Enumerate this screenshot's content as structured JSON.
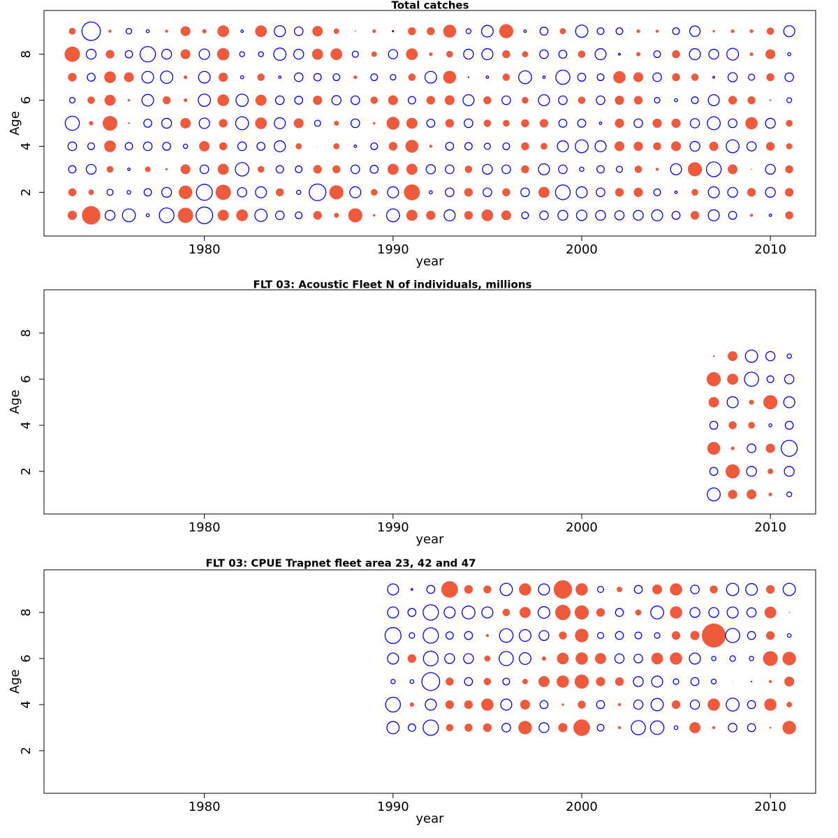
{
  "chart_data": [
    {
      "type": "bubble",
      "title": "Total catches",
      "xlabel": "year",
      "ylabel": "Age",
      "x": [
        1973,
        1974,
        1975,
        1976,
        1977,
        1978,
        1979,
        1980,
        1981,
        1982,
        1983,
        1984,
        1985,
        1986,
        1987,
        1988,
        1989,
        1990,
        1991,
        1992,
        1993,
        1994,
        1995,
        1996,
        1997,
        1998,
        1999,
        2000,
        2001,
        2002,
        2003,
        2004,
        2005,
        2006,
        2007,
        2008,
        2009,
        2010,
        2011
      ],
      "y": [
        1,
        2,
        3,
        4,
        5,
        6,
        7,
        8,
        9
      ],
      "values": [
        [
          1.5,
          3.0,
          -1.6,
          -2.1,
          -0.5,
          -2.4,
          2.5,
          -2.7,
          1.8,
          1.9,
          -2.0,
          -1.4,
          -1.1,
          1.4,
          0.8,
          2.3,
          0.4,
          -2.1,
          1.8,
          1.5,
          -1.8,
          1.4,
          1.9,
          1.6,
          -1.1,
          -1.4,
          -1.6,
          -1.7,
          -1.6,
          -1.5,
          -1.6,
          -1.8,
          -1.3,
          1.4,
          -1.8,
          -1.3,
          0.5,
          -0.4,
          1.3
        ],
        [
          1.3,
          0.9,
          -1.0,
          -0.6,
          -1.2,
          -1.6,
          2.2,
          -2.6,
          2.5,
          -1.5,
          -1.8,
          1.3,
          -0.7,
          -2.7,
          2.3,
          -1.8,
          1.1,
          -1.8,
          2.6,
          -0.5,
          -1.4,
          1.4,
          -1.4,
          1.3,
          -1.4,
          1.8,
          -2.4,
          -1.8,
          -1.4,
          1.4,
          1.5,
          -1.1,
          -0.4,
          1.1,
          -1.8,
          -1.6,
          1.4,
          -1.6,
          1.4
        ],
        [
          -1.2,
          -1.6,
          1.1,
          -0.4,
          0.9,
          0.4,
          1.6,
          -1.4,
          1.8,
          -2.2,
          1.1,
          -1.2,
          -1.1,
          1.4,
          1.3,
          -1.4,
          -1.3,
          1.8,
          1.8,
          -1.5,
          -1.4,
          1.2,
          -1.6,
          -1.4,
          1.3,
          -1.8,
          -1.4,
          -0.7,
          -1.2,
          -1.0,
          1.2,
          0.5,
          -1.8,
          2.3,
          -2.4,
          1.6,
          0.2,
          -1.6,
          1.3
        ],
        [
          -1.4,
          -1.1,
          1.9,
          -1.2,
          -1.4,
          -1.3,
          -0.7,
          1.7,
          1.3,
          -1.4,
          -1.3,
          -1.8,
          1.0,
          0.1,
          1.0,
          -0.4,
          -1.1,
          1.4,
          2.1,
          0.5,
          -1.3,
          -1.2,
          -1.0,
          -1.1,
          1.3,
          1.1,
          -1.8,
          -2.1,
          -1.8,
          1.6,
          1.5,
          1.3,
          1.6,
          -1.6,
          1.5,
          -2.1,
          -1.5,
          1.4,
          1.0
        ],
        [
          -2.3,
          0.7,
          2.4,
          0.3,
          -1.3,
          -1.6,
          1.7,
          -1.7,
          1.4,
          -2.1,
          1.9,
          -1.8,
          1.6,
          -1.0,
          0.8,
          -1.4,
          0.4,
          2.1,
          1.8,
          -1.3,
          1.4,
          -1.4,
          1.2,
          1.1,
          1.3,
          1.4,
          -1.3,
          -1.3,
          -0.4,
          1.5,
          -1.4,
          1.5,
          1.5,
          -1.5,
          -2.1,
          -1.4,
          2.0,
          -1.6,
          1.1
        ],
        [
          -0.9,
          1.2,
          1.8,
          0.4,
          -1.9,
          1.3,
          0.6,
          -2.0,
          1.9,
          -2.0,
          1.8,
          -1.4,
          -1.3,
          1.5,
          -1.5,
          -1.4,
          1.2,
          1.6,
          -1.2,
          1.4,
          1.6,
          -1.8,
          1.3,
          -1.4,
          1.1,
          -1.8,
          -1.4,
          1.2,
          -1.4,
          1.5,
          1.4,
          -0.9,
          -0.5,
          -1.1,
          -1.8,
          1.4,
          1.3,
          0.3,
          -0.8
        ],
        [
          1.4,
          -1.3,
          1.9,
          1.6,
          -1.9,
          -2.0,
          0.6,
          -1.9,
          1.5,
          -0.5,
          1.2,
          -0.4,
          -1.4,
          -1.2,
          -1.1,
          0.6,
          -1.1,
          -0.9,
          1.2,
          -1.9,
          2.1,
          -0.1,
          -0.4,
          1.2,
          -2.1,
          -0.4,
          -2.3,
          -1.3,
          -1.1,
          2.0,
          1.6,
          -1.4,
          1.3,
          1.2,
          -0.3,
          -1.5,
          -1.0,
          1.3,
          -1.4
        ],
        [
          2.5,
          -1.6,
          1.4,
          -1.2,
          -2.5,
          -1.6,
          1.6,
          -1.7,
          2.0,
          -0.8,
          -0.8,
          -2.0,
          -1.6,
          1.8,
          1.9,
          -1.0,
          0.9,
          -1.5,
          1.9,
          0.6,
          1.1,
          -1.6,
          -1.8,
          1.3,
          1.0,
          -1.4,
          -1.3,
          1.2,
          -1.8,
          -0.3,
          0.7,
          -1.1,
          1.3,
          -1.8,
          -1.6,
          -1.9,
          0.6,
          1.6,
          -0.5
        ],
        [
          1.1,
          -3.0,
          0.5,
          -0.9,
          -0.5,
          0.5,
          1.6,
          0.7,
          1.9,
          -0.4,
          1.9,
          -1.8,
          -1.4,
          1.7,
          0.9,
          0.2,
          0.6,
          -0.2,
          1.3,
          1.3,
          2.1,
          -0.8,
          -1.9,
          2.3,
          -0.4,
          -1.3,
          1.0,
          -2.0,
          -1.1,
          -1.1,
          0.6,
          0.5,
          -1.1,
          -1.7,
          0.4,
          0.6,
          0.6,
          1.2,
          -1.8
        ]
      ],
      "xlim": [
        1971.5,
        2012.4
      ],
      "ylim": [
        0.1,
        9.9
      ],
      "xticks": [
        1980,
        1990,
        2000,
        2010
      ],
      "yticks": [
        2,
        4,
        6,
        8
      ],
      "positive_color": "#ef5a3c",
      "negative_color": "#0000ff"
    },
    {
      "type": "bubble",
      "title": "FLT 03: Acoustic Fleet  N of individuals, millions",
      "xlabel": "year",
      "ylabel": "Age",
      "x": [
        2007,
        2008,
        2009,
        2010,
        2011
      ],
      "y": [
        1,
        2,
        3,
        4,
        5,
        6,
        7
      ],
      "values": [
        [
          -2.1,
          1.5,
          1.6,
          0.6,
          -0.8
        ],
        [
          -1.3,
          2.3,
          -1.6,
          0.9,
          -1.6
        ],
        [
          2.1,
          0.6,
          -1.4,
          1.5,
          -2.6
        ],
        [
          -1.3,
          1.3,
          1.1,
          -0.5,
          -1.3
        ],
        [
          1.7,
          -1.8,
          0.8,
          2.3,
          -1.8
        ],
        [
          2.3,
          1.8,
          -2.3,
          -1.1,
          -1.5
        ],
        [
          0.3,
          1.6,
          -2.0,
          -1.5,
          -0.7
        ]
      ],
      "xlim": [
        1971.5,
        2012.4
      ],
      "ylim": [
        0.15,
        9.88
      ],
      "xticks": [
        1980,
        1990,
        2000,
        2010
      ],
      "yticks": [
        2,
        4,
        6,
        8
      ],
      "positive_color": "#ef5a3c",
      "negative_color": "#0000ff"
    },
    {
      "type": "bubble",
      "title": "FLT 03: CPUE Trapnet fleet area 23, 42 and 47",
      "xlabel": "year",
      "ylabel": "Age",
      "x": [
        1990,
        1991,
        1992,
        1993,
        1994,
        1995,
        1996,
        1997,
        1998,
        1999,
        2000,
        2001,
        2002,
        2003,
        2004,
        2005,
        2006,
        2007,
        2008,
        2009,
        2010,
        2011
      ],
      "y": [
        3,
        4,
        5,
        6,
        7,
        8,
        9
      ],
      "values": [
        [
          -2.0,
          -1.2,
          -2.5,
          1.2,
          1.3,
          1.4,
          -1.4,
          2.2,
          -1.6,
          1.5,
          2.7,
          -1.1,
          0.5,
          -2.3,
          -2.2,
          -0.6,
          1.8,
          0.5,
          -1.4,
          -1.3,
          0.3,
          2.2
        ],
        [
          -2.4,
          0.7,
          -1.8,
          1.4,
          1.4,
          2.0,
          -1.8,
          1.6,
          -1.3,
          0.4,
          1.3,
          -1.3,
          0.5,
          -1.5,
          -2.0,
          1.4,
          -1.5,
          2.0,
          -2.1,
          -1.3,
          2.0,
          0.9
        ],
        [
          -0.7,
          -0.6,
          -2.9,
          1.3,
          -1.3,
          1.2,
          -1.1,
          0.9,
          1.8,
          2.0,
          2.3,
          1.5,
          1.4,
          -1.6,
          -1.8,
          -0.9,
          -1.3,
          -0.8,
          0.1,
          -0.1,
          0.5,
          1.6
        ],
        [
          -1.8,
          1.4,
          -2.4,
          -1.6,
          -1.6,
          1.0,
          -2.3,
          -1.9,
          0.7,
          1.9,
          2.0,
          1.8,
          -1.5,
          -1.4,
          1.9,
          2.0,
          -1.8,
          -0.7,
          -0.9,
          -0.7,
          2.4,
          2.2
        ],
        [
          -2.6,
          -0.9,
          -2.5,
          -1.2,
          -1.3,
          0.5,
          -2.2,
          -1.9,
          -1.6,
          1.3,
          2.2,
          -1.0,
          -1.3,
          -1.1,
          -0.9,
          1.4,
          1.5,
          3.9,
          -2.3,
          -1.3,
          1.4,
          -0.6
        ],
        [
          -1.8,
          -1.3,
          -2.5,
          -1.8,
          -2.1,
          -1.8,
          1.2,
          1.8,
          -1.9,
          2.5,
          2.3,
          1.4,
          -1.3,
          1.0,
          -2.1,
          2.0,
          -1.6,
          -1.6,
          -1.8,
          -1.5,
          1.9,
          0.2
        ],
        [
          -1.8,
          -0.3,
          -1.3,
          2.7,
          1.4,
          1.3,
          -2.0,
          2.0,
          -1.8,
          3.0,
          2.0,
          -1.0,
          0.9,
          -1.3,
          1.6,
          2.0,
          -1.4,
          1.3,
          -2.0,
          -1.9,
          1.4,
          -2.0
        ]
      ],
      "xlim": [
        1971.5,
        2012.4
      ],
      "ylim": [
        0.15,
        9.85
      ],
      "xticks": [
        1980,
        1990,
        2000,
        2010
      ],
      "yticks": [
        2,
        4,
        6,
        8
      ],
      "positive_color": "#ef5a3c",
      "negative_color": "#0000ff"
    }
  ]
}
